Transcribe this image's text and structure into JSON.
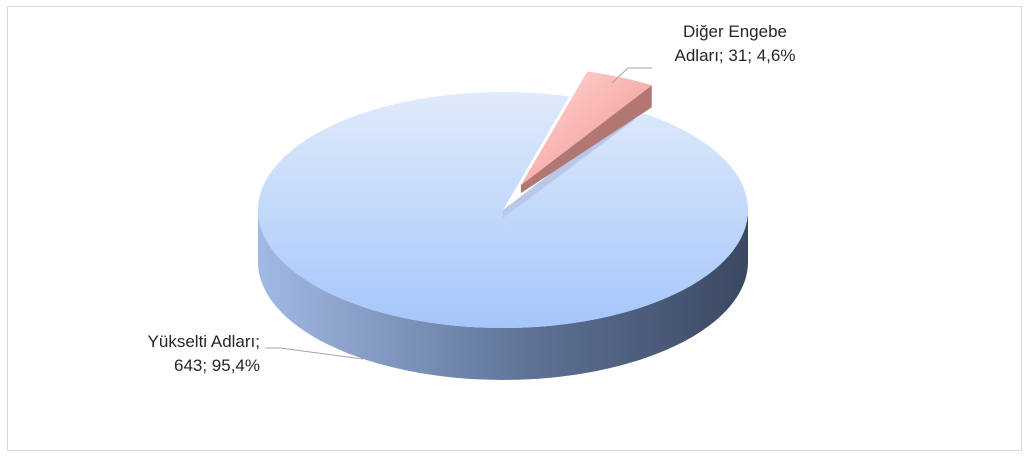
{
  "chart_data": {
    "type": "pie",
    "style": "3d-exploded",
    "slices": [
      {
        "name": "Yükselti Adları",
        "value": 643,
        "percent": "95,4%",
        "color": "#a6c8ff"
      },
      {
        "name": "Diğer Engebe Adları",
        "value": 31,
        "percent": "4,6%",
        "color": "#f4a8a4"
      }
    ],
    "labels": [
      {
        "line1": "Yükselti Adları;",
        "line2": "643; 95,4%"
      },
      {
        "line1": "Diğer Engebe",
        "line2": "Adları; 31; 4,6%"
      }
    ],
    "legend": "none"
  }
}
